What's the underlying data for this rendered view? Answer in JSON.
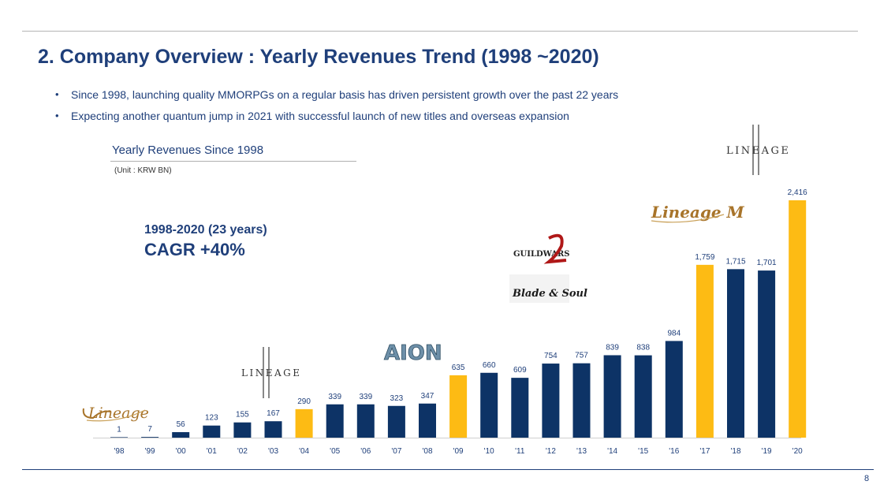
{
  "header": {
    "title": "2. Company Overview : Yearly Revenues Trend (1998 ~2020)",
    "bullets": [
      "Since 1998, launching quality MMORPGs on a regular basis has driven persistent growth over the past 22 years",
      "Expecting another quantum jump in 2021 with successful launch of  new titles and overseas expansion"
    ]
  },
  "callout": {
    "years": "1998-2020 (23 years)",
    "cagr": "CAGR  +40%"
  },
  "logos": {
    "lineage": "Lineage",
    "lineage2": "LINEAGE",
    "aion": "AION",
    "guildwars2": "GUILDWARS",
    "bladesoul": "Blade & Soul",
    "lineagem": "Lineage M"
  },
  "page_number": "8",
  "colors": {
    "navy": "#0d3366",
    "gold": "#fdbb14",
    "text": "#1f3f7a"
  },
  "chart_data": {
    "type": "bar",
    "title": "Yearly Revenues Since 1998",
    "unit": "(Unit : KRW BN)",
    "categories": [
      "'98",
      "'99",
      "'00",
      "'01",
      "'02",
      "'03",
      "'04",
      "'05",
      "'06",
      "'07",
      "'08",
      "'09",
      "'10",
      "'11",
      "'12",
      "'13",
      "'14",
      "'15",
      "'16",
      "'17",
      "'18",
      "'19",
      "'20"
    ],
    "values": [
      1,
      7,
      56,
      123,
      155,
      167,
      290,
      339,
      339,
      323,
      347,
      635,
      660,
      609,
      754,
      757,
      839,
      838,
      984,
      1759,
      1715,
      1701,
      2416
    ],
    "value_labels": [
      "1",
      "7",
      "56",
      "123",
      "155",
      "167",
      "290",
      "339",
      "339",
      "323",
      "347",
      "635",
      "660",
      "609",
      "754",
      "757",
      "839",
      "838",
      "984",
      "1,759",
      "1,715",
      "1,701",
      "2,416"
    ],
    "highlight_years": [
      "'04",
      "'09",
      "'17",
      "'20"
    ],
    "ylim": [
      0,
      2416
    ],
    "grid": false,
    "legend": "none"
  }
}
